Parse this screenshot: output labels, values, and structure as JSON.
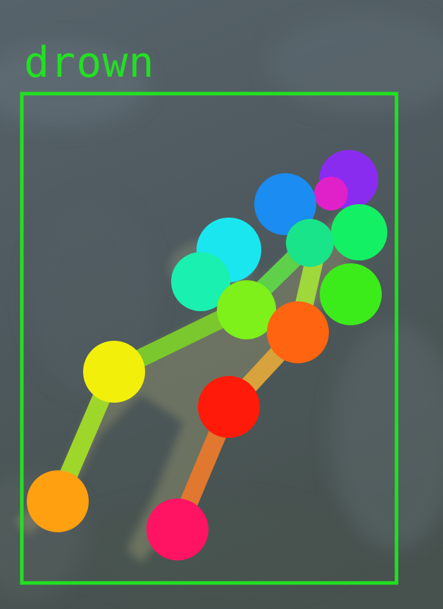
{
  "detection": {
    "label": "drown",
    "box_color": "#22e022"
  },
  "skeleton": {
    "limbs": [
      {
        "from": "lower-left-joint",
        "to": "left-mid-joint",
        "color": "#9fd62a"
      },
      {
        "from": "left-mid-joint",
        "to": "center-joint",
        "color": "#7ac82e"
      },
      {
        "from": "bottom-joint",
        "to": "red-joint",
        "color": "#e07830"
      },
      {
        "from": "red-joint",
        "to": "orange-joint",
        "color": "#d8a23c"
      },
      {
        "from": "orange-joint",
        "to": "right-green-joint",
        "color": "#9ed83a"
      },
      {
        "from": "center-joint",
        "to": "upper-green-joint",
        "color": "#5ed04a"
      },
      {
        "from": "upper-green-joint",
        "to": "blue-joint",
        "color": "#b6c078"
      }
    ],
    "joints": [
      {
        "name": "purple-joint",
        "color": "#8a2cf0"
      },
      {
        "name": "magenta-joint",
        "color": "#e020c8"
      },
      {
        "name": "blue-joint",
        "color": "#1a8cf2"
      },
      {
        "name": "cyan-joint",
        "color": "#1ae6f0"
      },
      {
        "name": "teal-joint",
        "color": "#1af0b0"
      },
      {
        "name": "spring-green-joint",
        "color": "#14f064"
      },
      {
        "name": "upper-green-joint",
        "color": "#1ae48a"
      },
      {
        "name": "center-joint",
        "color": "#7ef01a"
      },
      {
        "name": "right-green-joint",
        "color": "#3cec1a"
      },
      {
        "name": "orange-joint",
        "color": "#ff6410"
      },
      {
        "name": "yellow-joint",
        "color": "#f2f00a"
      },
      {
        "name": "red-joint",
        "color": "#ff1a0a"
      },
      {
        "name": "lower-left-joint",
        "color": "#ffa010"
      },
      {
        "name": "bottom-joint",
        "color": "#ff1464"
      }
    ]
  }
}
